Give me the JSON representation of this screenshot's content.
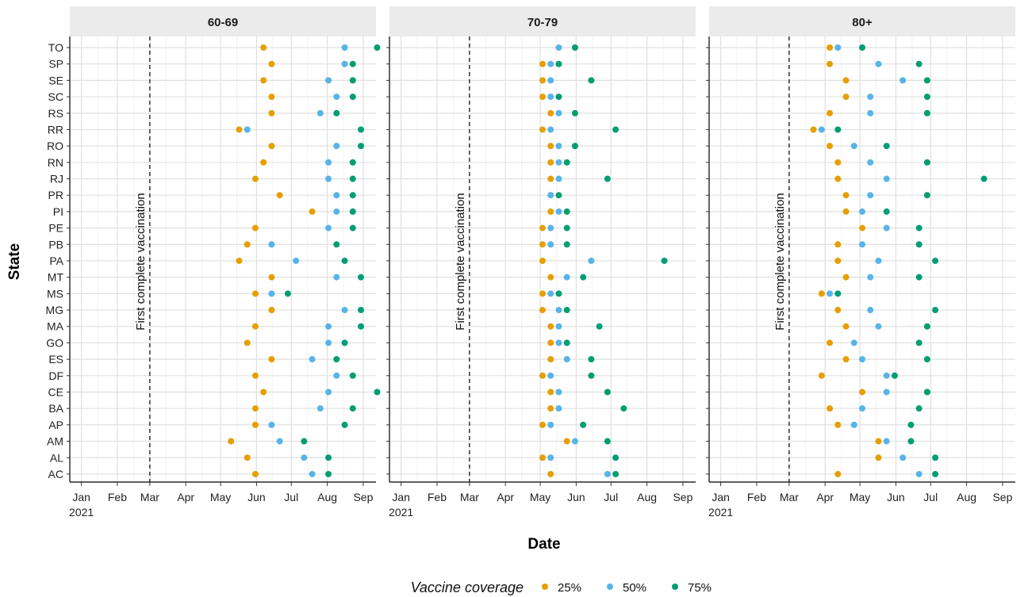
{
  "chart_data": {
    "type": "scatter",
    "xlabel": "Date",
    "ylabel": "State",
    "x_tick_labels": [
      "Jan",
      "Feb",
      "Mar",
      "Apr",
      "May",
      "Jun",
      "Jul",
      "Aug",
      "Sep"
    ],
    "x_year_label": "2021",
    "xlim": [
      "2020-12-22",
      "2021-09-12"
    ],
    "grid": true,
    "legend": {
      "title": "Vaccine coverage",
      "placement": "bottom",
      "entries": [
        {
          "label": "25%",
          "color": "#E69F00"
        },
        {
          "label": "50%",
          "color": "#56B4E9"
        },
        {
          "label": "75%",
          "color": "#009E73"
        }
      ]
    },
    "states": [
      "TO",
      "SP",
      "SE",
      "SC",
      "RS",
      "RR",
      "RO",
      "RN",
      "RJ",
      "PR",
      "PI",
      "PE",
      "PB",
      "PA",
      "MT",
      "MS",
      "MG",
      "MA",
      "GO",
      "ES",
      "DF",
      "CE",
      "BA",
      "AP",
      "AM",
      "AL",
      "AC"
    ],
    "reference_line": {
      "date": "2021-03-01",
      "label": "First complete vaccination"
    },
    "panels": [
      {
        "title": "60-69",
        "series": [
          {
            "name": "25%",
            "dates": [
              "2021-06-07",
              "2021-06-14",
              "2021-06-07",
              "2021-06-14",
              "2021-06-14",
              "2021-05-17",
              "2021-06-14",
              "2021-06-07",
              "2021-05-31",
              "2021-06-21",
              "2021-07-19",
              "2021-05-31",
              "2021-05-24",
              "2021-05-17",
              "2021-06-14",
              "2021-05-31",
              "2021-06-14",
              "2021-05-31",
              "2021-05-24",
              "2021-06-14",
              "2021-05-31",
              "2021-06-07",
              "2021-05-31",
              "2021-05-31",
              "2021-05-10",
              "2021-05-24",
              "2021-05-31"
            ]
          },
          {
            "name": "50%",
            "dates": [
              "2021-08-16",
              "2021-08-16",
              "2021-08-02",
              "2021-08-09",
              "2021-07-26",
              "2021-05-24",
              "2021-08-09",
              "2021-08-02",
              "2021-08-02",
              "2021-08-09",
              "2021-08-09",
              "2021-08-02",
              "2021-06-14",
              "2021-07-05",
              "2021-08-09",
              "2021-06-14",
              "2021-08-16",
              "2021-08-02",
              "2021-08-02",
              "2021-07-19",
              "2021-08-09",
              "2021-08-02",
              "2021-07-26",
              "2021-06-14",
              "2021-06-21",
              "2021-07-12",
              "2021-07-19"
            ]
          },
          {
            "name": "75%",
            "dates": [
              "2021-09-13",
              "2021-08-23",
              "2021-08-23",
              "2021-08-23",
              "2021-08-09",
              "2021-08-30",
              "2021-08-30",
              "2021-08-23",
              "2021-08-23",
              "2021-08-23",
              "2021-08-23",
              "2021-08-23",
              "2021-08-09",
              "2021-08-16",
              "2021-08-30",
              "2021-06-28",
              "2021-08-30",
              "2021-08-30",
              "2021-08-16",
              "2021-08-09",
              "2021-08-23",
              "2021-09-13",
              "2021-08-23",
              "2021-08-16",
              "2021-07-12",
              "2021-08-02",
              "2021-08-02"
            ]
          }
        ]
      },
      {
        "title": "70-79",
        "series": [
          {
            "name": "25%",
            "dates": [
              null,
              "2021-05-03",
              "2021-05-03",
              "2021-05-03",
              "2021-05-10",
              "2021-05-03",
              "2021-05-10",
              "2021-05-10",
              "2021-05-10",
              "2021-05-10",
              "2021-05-10",
              "2021-05-03",
              "2021-05-03",
              "2021-05-03",
              "2021-05-10",
              "2021-05-03",
              "2021-05-03",
              "2021-05-10",
              "2021-05-10",
              "2021-05-10",
              "2021-05-03",
              "2021-05-10",
              "2021-05-10",
              "2021-05-03",
              "2021-05-24",
              "2021-05-03",
              "2021-05-10"
            ]
          },
          {
            "name": "50%",
            "dates": [
              "2021-05-17",
              "2021-05-10",
              "2021-05-10",
              "2021-05-10",
              "2021-05-17",
              "2021-05-10",
              "2021-05-17",
              "2021-05-17",
              "2021-05-17",
              "2021-05-10",
              "2021-05-17",
              "2021-05-10",
              "2021-05-10",
              "2021-06-14",
              "2021-05-24",
              "2021-05-10",
              "2021-05-17",
              "2021-05-17",
              "2021-05-17",
              "2021-05-24",
              "2021-05-10",
              "2021-05-17",
              "2021-05-17",
              "2021-05-10",
              "2021-05-31",
              "2021-05-10",
              "2021-06-28"
            ]
          },
          {
            "name": "75%",
            "dates": [
              "2021-05-31",
              "2021-05-17",
              "2021-06-14",
              "2021-05-17",
              "2021-05-31",
              "2021-07-05",
              "2021-05-31",
              "2021-05-24",
              "2021-06-28",
              "2021-05-17",
              "2021-05-24",
              "2021-05-24",
              "2021-05-24",
              "2021-08-16",
              "2021-06-07",
              "2021-05-17",
              "2021-05-24",
              "2021-06-21",
              "2021-05-24",
              "2021-06-14",
              "2021-06-14",
              "2021-06-28",
              "2021-07-12",
              "2021-06-07",
              "2021-06-28",
              "2021-07-05",
              "2021-07-05"
            ]
          }
        ]
      },
      {
        "title": "80+",
        "series": [
          {
            "name": "25%",
            "dates": [
              "2021-04-05",
              "2021-04-05",
              "2021-04-19",
              "2021-04-19",
              "2021-04-05",
              "2021-03-22",
              "2021-04-05",
              "2021-04-12",
              "2021-04-12",
              "2021-04-19",
              "2021-04-19",
              "2021-05-03",
              "2021-04-12",
              "2021-04-12",
              "2021-04-19",
              "2021-03-29",
              "2021-04-12",
              "2021-04-19",
              "2021-04-05",
              "2021-04-19",
              "2021-03-29",
              "2021-05-03",
              "2021-04-05",
              "2021-04-12",
              "2021-05-17",
              "2021-05-17",
              "2021-04-12"
            ]
          },
          {
            "name": "50%",
            "dates": [
              "2021-04-12",
              "2021-05-17",
              "2021-06-07",
              "2021-05-10",
              "2021-05-10",
              "2021-03-29",
              "2021-04-26",
              "2021-05-10",
              "2021-05-24",
              "2021-05-10",
              "2021-05-03",
              "2021-05-24",
              "2021-05-03",
              "2021-05-17",
              "2021-05-10",
              "2021-04-05",
              "2021-05-10",
              "2021-05-17",
              "2021-04-26",
              "2021-05-03",
              "2021-05-24",
              "2021-05-24",
              "2021-05-03",
              "2021-04-26",
              "2021-05-24",
              "2021-06-07",
              "2021-06-21"
            ]
          },
          {
            "name": "75%",
            "dates": [
              "2021-05-03",
              "2021-06-21",
              "2021-06-28",
              "2021-06-28",
              "2021-06-28",
              "2021-04-12",
              "2021-05-24",
              "2021-06-28",
              "2021-08-16",
              "2021-06-28",
              "2021-05-24",
              "2021-06-21",
              "2021-06-21",
              "2021-07-05",
              "2021-06-21",
              "2021-04-12",
              "2021-07-05",
              "2021-06-28",
              "2021-06-21",
              "2021-06-28",
              "2021-05-31",
              "2021-06-28",
              "2021-06-21",
              "2021-06-14",
              "2021-06-14",
              "2021-07-05",
              "2021-07-05"
            ]
          }
        ]
      }
    ]
  }
}
